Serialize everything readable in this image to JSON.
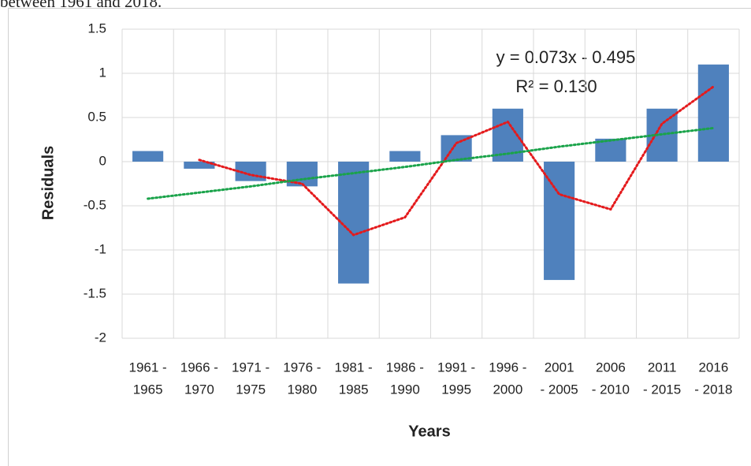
{
  "caption_fragment": "between 1961 and 2018.",
  "chart_data": {
    "type": "bar",
    "x_label": "Years",
    "y_label": "Residuals",
    "annotations": [
      "y = 0.073x - 0.495",
      "R² = 0.130"
    ],
    "categories": [
      [
        "1961 -",
        "1965"
      ],
      [
        "1966 -",
        "1970"
      ],
      [
        "1971 -",
        "1975"
      ],
      [
        "1976 -",
        "1980"
      ],
      [
        "1981 -",
        "1985"
      ],
      [
        "1986 -",
        "1990"
      ],
      [
        "1991 -",
        "1995"
      ],
      [
        "1996 -",
        "2000"
      ],
      [
        "2001",
        "- 2005"
      ],
      [
        "2006",
        "- 2010"
      ],
      [
        "2011",
        "- 2015"
      ],
      [
        "2016",
        "- 2018"
      ]
    ],
    "values": [
      0.12,
      -0.08,
      -0.22,
      -0.28,
      -1.38,
      0.12,
      0.3,
      0.6,
      -1.34,
      0.26,
      0.6,
      1.1
    ],
    "color": "#4f81bd",
    "lines": [
      {
        "color": "#e41a1c",
        "values": [
          null,
          0.02,
          -0.15,
          -0.25,
          -0.83,
          -0.63,
          0.21,
          0.45,
          -0.37,
          -0.54,
          0.43,
          0.85
        ]
      },
      {
        "color": "#1aa34a",
        "values": [
          -0.42,
          -0.35,
          -0.28,
          -0.2,
          -0.13,
          -0.06,
          0.02,
          0.09,
          0.17,
          0.24,
          0.31,
          0.38
        ]
      }
    ],
    "ylim": [
      -2,
      1.5
    ],
    "yticks": [
      1.5,
      1,
      0.5,
      0,
      -0.5,
      -1,
      -1.5,
      -2
    ],
    "grid": true
  }
}
